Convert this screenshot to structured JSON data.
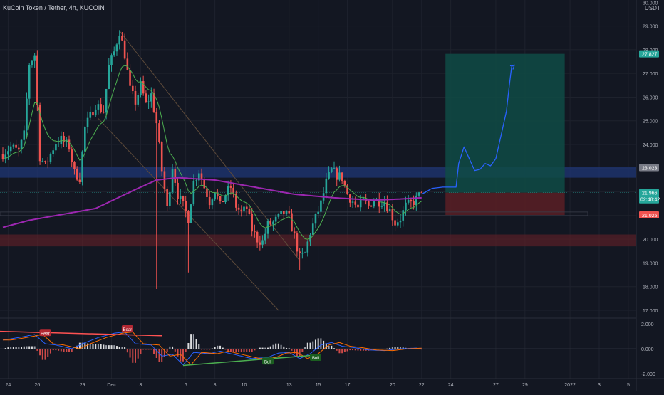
{
  "header": {
    "symbol_title": "KuCoin Token / Tether, 4h, KUCOIN",
    "currency": "USDT"
  },
  "colors": {
    "background": "#131722",
    "grid": "#1e222d",
    "up": "#26a69a",
    "down": "#ef5350",
    "ma_slow": "#9c27b0",
    "ma_fast": "#4caf50",
    "drawing": "#2962ff",
    "channel": "#5d4a3a",
    "profit_zone": "#0f4b45",
    "loss_zone": "#5a1f24",
    "resistance_zone": "#1e3470",
    "support_zone": "#5a1f27"
  },
  "price_axis": {
    "ticks": [
      "30.000",
      "29.000",
      "28.000",
      "27.000",
      "26.000",
      "25.000",
      "24.000",
      "23.000",
      "22.000",
      "21.000",
      "20.000",
      "19.000",
      "18.000",
      "17.000"
    ],
    "tags": [
      {
        "label": "27.827",
        "value": 27.827,
        "color": "#26a69a"
      },
      {
        "label": "23.023",
        "value": 23.023,
        "color": "#787b86"
      },
      {
        "label": "21.966",
        "value": 21.966,
        "color": "#26a69a",
        "sub": "02:48:42"
      },
      {
        "label": "21.025",
        "value": 21.025,
        "color": "#ef5350"
      }
    ]
  },
  "indicator_axis": {
    "ticks": [
      {
        "label": "2.000",
        "value": 2
      },
      {
        "label": "0.000",
        "value": 0
      },
      {
        "label": "-2.000",
        "value": -2
      }
    ]
  },
  "time_axis": {
    "ticks": [
      {
        "label": "24",
        "idx": 2
      },
      {
        "label": "26",
        "idx": 13
      },
      {
        "label": "29",
        "idx": 30
      },
      {
        "label": "Dec",
        "idx": 41
      },
      {
        "label": "3",
        "idx": 52
      },
      {
        "label": "6",
        "idx": 69
      },
      {
        "label": "8",
        "idx": 80
      },
      {
        "label": "10",
        "idx": 91
      },
      {
        "label": "13",
        "idx": 108
      },
      {
        "label": "15",
        "idx": 119
      },
      {
        "label": "17",
        "idx": 130
      },
      {
        "label": "20",
        "idx": 147
      },
      {
        "label": "22",
        "idx": 158
      },
      {
        "label": "24",
        "idx": 169
      },
      {
        "label": "27",
        "idx": 186
      },
      {
        "label": "29",
        "idx": 197
      },
      {
        "label": "2022",
        "idx": 214
      },
      {
        "label": "3",
        "idx": 225
      },
      {
        "label": "5",
        "idx": 236
      }
    ]
  },
  "annotations": [
    {
      "label": "Bear",
      "type": "bear",
      "idx": 16,
      "value": 1.25
    },
    {
      "label": "Bear",
      "type": "bear",
      "idx": 47,
      "value": 1.55
    },
    {
      "label": "Bull",
      "type": "bull",
      "idx": 100,
      "value": -1.05
    },
    {
      "label": "Bull",
      "type": "bull",
      "idx": 118,
      "value": -0.75
    }
  ],
  "chart_data": {
    "type": "candlestick",
    "title": "KuCoin Token / Tether, 4h, KUCOIN",
    "unit": "USDT",
    "ylim": [
      16.7,
      30.1
    ],
    "keypoints": [
      [
        0,
        23.6
      ],
      [
        3,
        23.9
      ],
      [
        6,
        23.7
      ],
      [
        8,
        24.4
      ],
      [
        10,
        27.4
      ],
      [
        12,
        27.8
      ],
      [
        14,
        23.5
      ],
      [
        16,
        23.1
      ],
      [
        18,
        23.6
      ],
      [
        20,
        24.1
      ],
      [
        22,
        24.2
      ],
      [
        25,
        23.9
      ],
      [
        27,
        22.8
      ],
      [
        29,
        22.6
      ],
      [
        31,
        24.7
      ],
      [
        33,
        25.2
      ],
      [
        35,
        25.7
      ],
      [
        38,
        25.4
      ],
      [
        40,
        27.3
      ],
      [
        42,
        27.9
      ],
      [
        44,
        28.8
      ],
      [
        46,
        27.8
      ],
      [
        48,
        26.3
      ],
      [
        50,
        25.8
      ],
      [
        52,
        26.5
      ],
      [
        54,
        25.7
      ],
      [
        56,
        26.1
      ],
      [
        58,
        24.9
      ],
      [
        60,
        22.9
      ],
      [
        62,
        21.3
      ],
      [
        64,
        23.1
      ],
      [
        66,
        21.9
      ],
      [
        68,
        21.4
      ],
      [
        70,
        20.9
      ],
      [
        72,
        22.4
      ],
      [
        74,
        22.9
      ],
      [
        76,
        22.2
      ],
      [
        78,
        21.6
      ],
      [
        80,
        22.1
      ],
      [
        82,
        21.4
      ],
      [
        84,
        21.9
      ],
      [
        86,
        22.2
      ],
      [
        88,
        21.4
      ],
      [
        90,
        21.1
      ],
      [
        92,
        21.3
      ],
      [
        94,
        20.4
      ],
      [
        96,
        20.0
      ],
      [
        98,
        19.9
      ],
      [
        100,
        20.6
      ],
      [
        102,
        20.7
      ],
      [
        104,
        20.9
      ],
      [
        106,
        21.1
      ],
      [
        108,
        20.9
      ],
      [
        110,
        20.1
      ],
      [
        112,
        19.2
      ],
      [
        114,
        19.4
      ],
      [
        116,
        20.3
      ],
      [
        118,
        20.9
      ],
      [
        120,
        21.5
      ],
      [
        122,
        22.4
      ],
      [
        124,
        22.9
      ],
      [
        126,
        22.7
      ],
      [
        128,
        22.6
      ],
      [
        130,
        21.9
      ],
      [
        132,
        21.6
      ],
      [
        134,
        21.3
      ],
      [
        136,
        21.6
      ],
      [
        138,
        21.4
      ],
      [
        140,
        21.7
      ],
      [
        142,
        21.6
      ],
      [
        144,
        21.6
      ],
      [
        146,
        21.2
      ],
      [
        148,
        20.7
      ],
      [
        150,
        20.9
      ],
      [
        152,
        21.4
      ],
      [
        154,
        21.5
      ],
      [
        156,
        21.7
      ],
      [
        158,
        21.966
      ]
    ],
    "ma_slow": [
      [
        0,
        20.5
      ],
      [
        10,
        20.8
      ],
      [
        20,
        21.0
      ],
      [
        35,
        21.3
      ],
      [
        50,
        22.1
      ],
      [
        58,
        22.5
      ],
      [
        66,
        22.6
      ],
      [
        80,
        22.5
      ],
      [
        95,
        22.2
      ],
      [
        110,
        21.9
      ],
      [
        125,
        21.75
      ],
      [
        140,
        21.65
      ],
      [
        150,
        21.7
      ],
      [
        158,
        21.75
      ]
    ],
    "oscillator": [
      [
        0,
        0.7
      ],
      [
        6,
        0.9
      ],
      [
        12,
        1.15
      ],
      [
        16,
        0.4
      ],
      [
        20,
        0.3
      ],
      [
        26,
        0.0
      ],
      [
        30,
        0.4
      ],
      [
        36,
        0.9
      ],
      [
        42,
        1.25
      ],
      [
        46,
        1.35
      ],
      [
        50,
        0.4
      ],
      [
        56,
        0.3
      ],
      [
        60,
        -0.6
      ],
      [
        64,
        -0.45
      ],
      [
        68,
        -1.3
      ],
      [
        72,
        -0.3
      ],
      [
        78,
        -0.4
      ],
      [
        82,
        -0.2
      ],
      [
        88,
        -0.5
      ],
      [
        94,
        -0.8
      ],
      [
        100,
        -0.7
      ],
      [
        104,
        -0.35
      ],
      [
        108,
        -0.3
      ],
      [
        112,
        -0.8
      ],
      [
        116,
        -0.4
      ],
      [
        120,
        0.3
      ],
      [
        124,
        0.5
      ],
      [
        128,
        0.2
      ],
      [
        132,
        0.1
      ],
      [
        138,
        -0.1
      ],
      [
        144,
        -0.15
      ],
      [
        150,
        0.0
      ],
      [
        156,
        0.05
      ],
      [
        158,
        0.0
      ]
    ],
    "zones": {
      "resistance": [
        22.6,
        23.05
      ],
      "support": [
        19.7,
        20.2
      ],
      "entry": 21.966,
      "target": 27.827,
      "stop": 21.025,
      "position_idx": [
        167,
        212
      ]
    },
    "channel": {
      "upper": [
        [
          44,
          28.8
        ],
        [
          112,
          19.1
        ]
      ],
      "lower": [
        [
          36,
          25.1
        ],
        [
          104,
          17.0
        ]
      ]
    },
    "projection": [
      [
        158,
        21.9
      ],
      [
        162,
        22.15
      ],
      [
        166,
        22.2
      ],
      [
        171,
        22.2
      ],
      [
        172,
        23.2
      ],
      [
        174,
        23.9
      ],
      [
        176,
        23.4
      ],
      [
        178,
        22.9
      ],
      [
        180,
        22.95
      ],
      [
        182,
        23.2
      ],
      [
        184,
        23.1
      ],
      [
        186,
        23.4
      ],
      [
        188,
        24.4
      ],
      [
        190,
        25.4
      ],
      [
        191,
        26.4
      ],
      [
        192,
        27.3
      ],
      [
        193,
        27.35
      ]
    ]
  }
}
